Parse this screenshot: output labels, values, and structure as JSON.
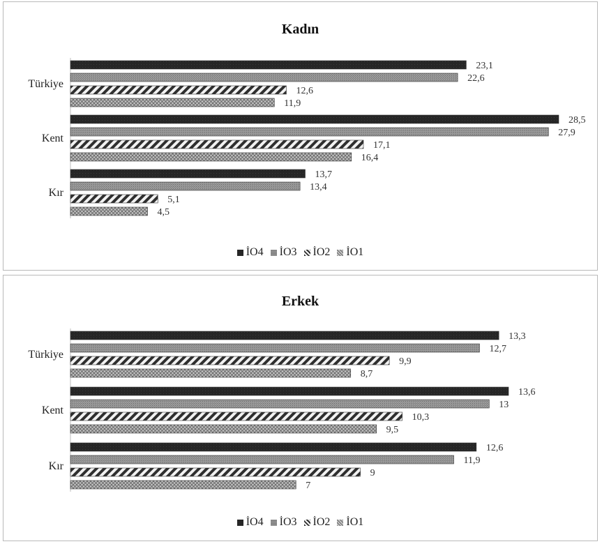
{
  "chart_data": [
    {
      "type": "bar",
      "orientation": "horizontal",
      "title": "Kadın",
      "categories": [
        "Türkiye",
        "Kent",
        "Kır"
      ],
      "series": [
        {
          "name": "İO4",
          "values": [
            23.1,
            28.5,
            13.7
          ],
          "labels": [
            "23,1",
            "28,5",
            "13,7"
          ],
          "color": "#2b2b2b",
          "pattern": "dark-solid"
        },
        {
          "name": "İO3",
          "values": [
            22.6,
            27.9,
            13.4
          ],
          "labels": [
            "22,6",
            "27,9",
            "13,4"
          ],
          "color": "#8a8a8a",
          "pattern": "fine-grey"
        },
        {
          "name": "İO2",
          "values": [
            12.6,
            17.1,
            5.1
          ],
          "labels": [
            "12,6",
            "17,1",
            "5,1"
          ],
          "color": "#444444",
          "pattern": "diagonal-stripes"
        },
        {
          "name": "İO1",
          "values": [
            11.9,
            16.4,
            4.5
          ],
          "labels": [
            "11,9",
            "16,4",
            "4,5"
          ],
          "color": "#9a9a9a",
          "pattern": "crosshatch"
        }
      ],
      "xlim": [
        0,
        28.5
      ],
      "grid": false,
      "legend_position": "bottom"
    },
    {
      "type": "bar",
      "orientation": "horizontal",
      "title": "Erkek",
      "categories": [
        "Türkiye",
        "Kent",
        "Kır"
      ],
      "series": [
        {
          "name": "İO4",
          "values": [
            13.3,
            13.6,
            12.6
          ],
          "labels": [
            "13,3",
            "13,6",
            "12,6"
          ],
          "color": "#2b2b2b",
          "pattern": "dark-solid"
        },
        {
          "name": "İO3",
          "values": [
            12.7,
            13,
            11.9
          ],
          "labels": [
            "12,7",
            "13",
            "11,9"
          ],
          "color": "#8a8a8a",
          "pattern": "fine-grey"
        },
        {
          "name": "İO2",
          "values": [
            9.9,
            10.3,
            9
          ],
          "labels": [
            "9,9",
            "10,3",
            "9"
          ],
          "color": "#444444",
          "pattern": "diagonal-stripes"
        },
        {
          "name": "İO1",
          "values": [
            8.7,
            9.5,
            7
          ],
          "labels": [
            "8,7",
            "9,5",
            "7"
          ],
          "color": "#9a9a9a",
          "pattern": "crosshatch"
        }
      ],
      "xlim": [
        0,
        13.6
      ],
      "grid": false,
      "legend_position": "bottom"
    }
  ]
}
